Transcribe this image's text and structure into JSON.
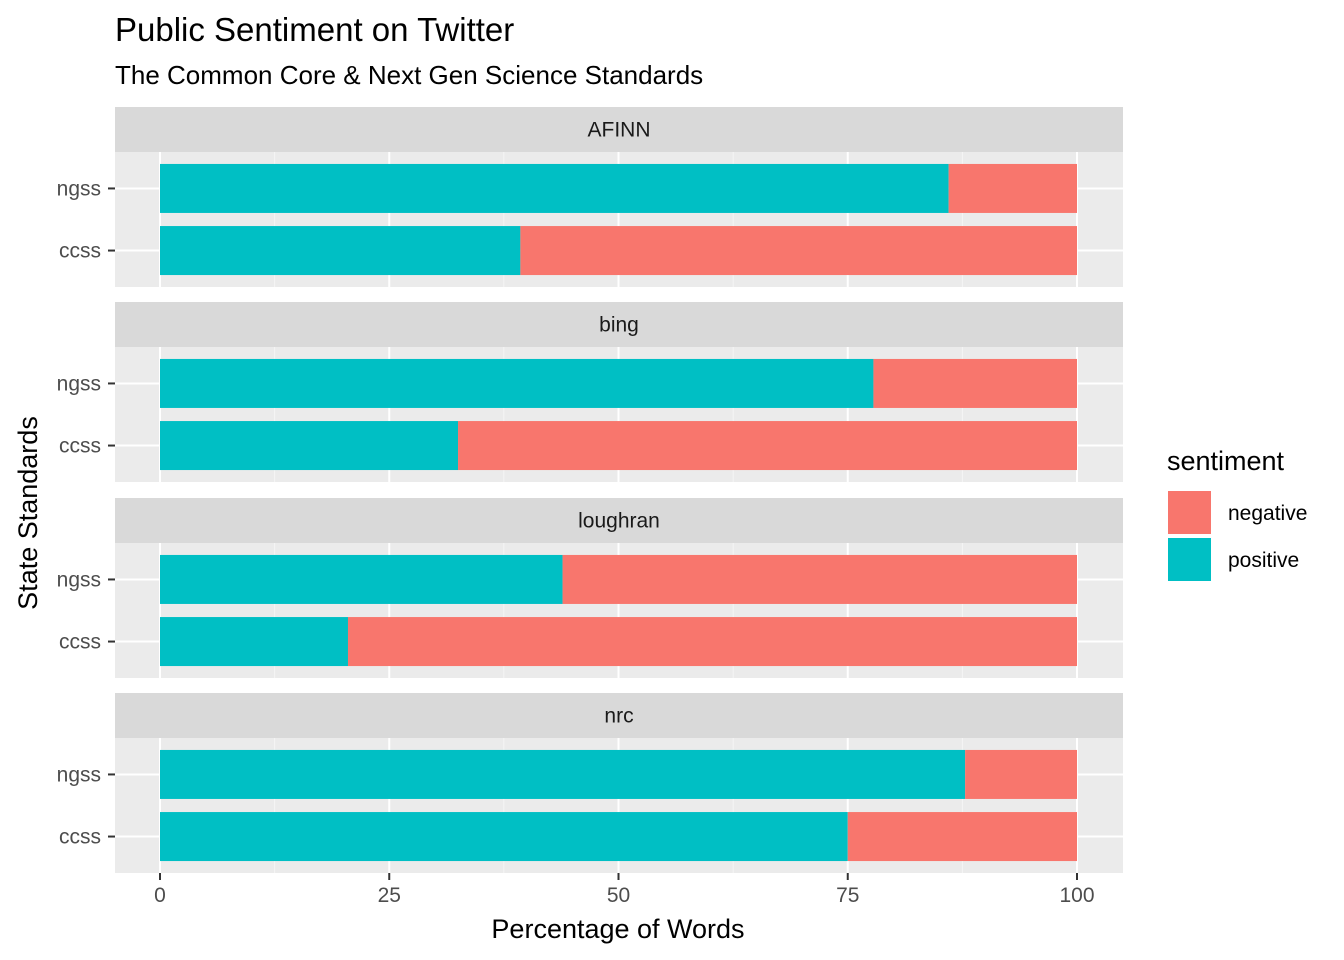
{
  "chart_data": {
    "type": "bar",
    "orientation": "horizontal",
    "stacked": true,
    "title": "Public Sentiment on Twitter",
    "subtitle": "The Common Core & Next Gen Science Standards",
    "xlabel": "Percentage of Words",
    "ylabel": "State Standards",
    "xlim": [
      0,
      100
    ],
    "x_ticks": [
      0,
      25,
      50,
      75,
      100
    ],
    "grid": true,
    "legend": {
      "title": "sentiment",
      "position": "right",
      "entries": [
        {
          "label": "negative",
          "color": "#F8766D"
        },
        {
          "label": "positive",
          "color": "#00BFC4"
        }
      ]
    },
    "categories": [
      "ngss",
      "ccss"
    ],
    "facets": [
      {
        "label": "AFINN",
        "bars": [
          {
            "category": "ngss",
            "positive": 86,
            "negative": 14
          },
          {
            "category": "ccss",
            "positive": 39.3,
            "negative": 60.7
          }
        ]
      },
      {
        "label": "bing",
        "bars": [
          {
            "category": "ngss",
            "positive": 77.8,
            "negative": 22.2
          },
          {
            "category": "ccss",
            "positive": 32.5,
            "negative": 67.5
          }
        ]
      },
      {
        "label": "loughran",
        "bars": [
          {
            "category": "ngss",
            "positive": 43.9,
            "negative": 56.1
          },
          {
            "category": "ccss",
            "positive": 20.5,
            "negative": 79.5
          }
        ]
      },
      {
        "label": "nrc",
        "bars": [
          {
            "category": "ngss",
            "positive": 87.8,
            "negative": 12.2
          },
          {
            "category": "ccss",
            "positive": 75,
            "negative": 25
          }
        ]
      }
    ]
  }
}
